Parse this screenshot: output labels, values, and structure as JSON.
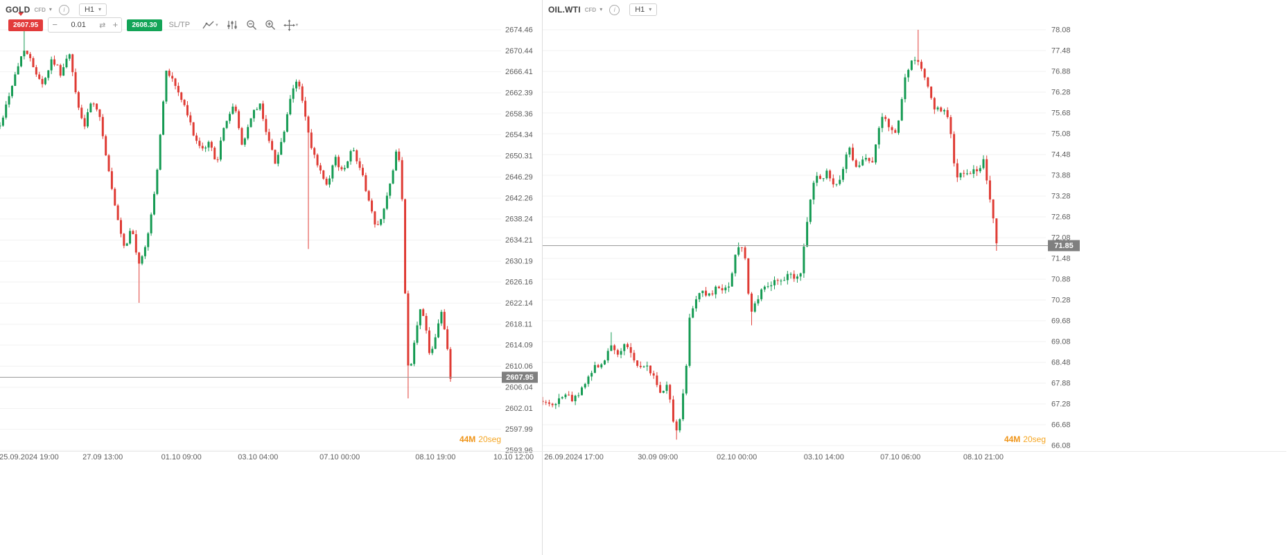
{
  "colors": {
    "up": "#149a52",
    "down": "#df3b34",
    "sell_badge": "#e23b3b",
    "buy_badge": "#13a457",
    "price_badge_bg": "#7f7f7f",
    "price_line": "#9a9a9a",
    "grid": "#f2f2f2",
    "axis_text": "#5c5c5c",
    "timer_orange": "#ef9417"
  },
  "panels": [
    {
      "symbol": "GOLD",
      "instrument_type": "CFD",
      "timeframe": "H1",
      "trade": {
        "sell": "2607.95",
        "volume": "0.01",
        "buy": "2608.30",
        "sltp": "SL/TP"
      },
      "timer_value": "44M",
      "timer_seconds": "20seg"
    },
    {
      "symbol": "OIL.WTI",
      "instrument_type": "CFD",
      "timeframe": "H1",
      "timer_value": "44M",
      "timer_seconds": "20seg"
    }
  ],
  "chart_data": [
    {
      "type": "candlestick",
      "symbol": "GOLD",
      "timeframe": "H1",
      "current_price": 2607.95,
      "decimals": 2,
      "ylim": [
        2593.96,
        2674.46
      ],
      "y_ticks": [
        2674.46,
        2670.44,
        2666.41,
        2662.39,
        2658.36,
        2654.34,
        2650.31,
        2646.29,
        2642.26,
        2638.24,
        2634.21,
        2630.19,
        2626.16,
        2622.14,
        2618.11,
        2614.09,
        2610.06,
        2606.04,
        2602.01,
        2597.99,
        2593.96
      ],
      "x_ticks": [
        {
          "label": "25.09.2024 19:00",
          "pos": 0.058
        },
        {
          "label": "27.09 13:00",
          "pos": 0.205
        },
        {
          "label": "01.10 09:00",
          "pos": 0.362
        },
        {
          "label": "03.10 04:00",
          "pos": 0.515
        },
        {
          "label": "07.10 00:00",
          "pos": 0.678
        },
        {
          "label": "08.10 19:00",
          "pos": 0.869
        },
        {
          "label": "10.10 12:00",
          "pos": 1.025
        }
      ],
      "bars": 150,
      "volatility": 1.1,
      "seed": 42,
      "price_path": [
        [
          0.0,
          2656
        ],
        [
          0.021,
          2663
        ],
        [
          0.048,
          2671
        ],
        [
          0.069,
          2667
        ],
        [
          0.086,
          2664
        ],
        [
          0.104,
          2669
        ],
        [
          0.122,
          2666
        ],
        [
          0.138,
          2670
        ],
        [
          0.155,
          2660
        ],
        [
          0.169,
          2656
        ],
        [
          0.183,
          2661
        ],
        [
          0.201,
          2657
        ],
        [
          0.214,
          2649
        ],
        [
          0.232,
          2639
        ],
        [
          0.249,
          2632
        ],
        [
          0.263,
          2637
        ],
        [
          0.277,
          2629
        ],
        [
          0.293,
          2634
        ],
        [
          0.311,
          2645
        ],
        [
          0.332,
          2667
        ],
        [
          0.349,
          2664
        ],
        [
          0.367,
          2660
        ],
        [
          0.385,
          2655
        ],
        [
          0.401,
          2651
        ],
        [
          0.418,
          2653
        ],
        [
          0.432,
          2649
        ],
        [
          0.45,
          2657
        ],
        [
          0.468,
          2660
        ],
        [
          0.484,
          2652
        ],
        [
          0.501,
          2658
        ],
        [
          0.519,
          2660
        ],
        [
          0.537,
          2653
        ],
        [
          0.55,
          2649
        ],
        [
          0.567,
          2655
        ],
        [
          0.584,
          2663
        ],
        [
          0.595,
          2665
        ],
        [
          0.609,
          2658
        ],
        [
          0.62,
          2652
        ],
        [
          0.636,
          2648
        ],
        [
          0.653,
          2644
        ],
        [
          0.668,
          2650
        ],
        [
          0.685,
          2647
        ],
        [
          0.701,
          2652
        ],
        [
          0.716,
          2649
        ],
        [
          0.733,
          2643
        ],
        [
          0.751,
          2636
        ],
        [
          0.768,
          2641
        ],
        [
          0.784,
          2647
        ],
        [
          0.794,
          2653
        ],
        [
          0.802,
          2643
        ],
        [
          0.809,
          2622
        ],
        [
          0.816,
          2607
        ],
        [
          0.826,
          2614
        ],
        [
          0.837,
          2621
        ],
        [
          0.848,
          2619
        ],
        [
          0.858,
          2612
        ],
        [
          0.869,
          2616
        ],
        [
          0.88,
          2621
        ],
        [
          0.889,
          2616
        ],
        [
          0.899,
          2608
        ]
      ],
      "key_wicks": [
        {
          "pos": 0.048,
          "price": 2674.4
        },
        {
          "pos": 0.277,
          "price": 2622.2
        },
        {
          "pos": 0.615,
          "price": 2632.5
        },
        {
          "pos": 0.813,
          "price": 2603.9
        }
      ]
    },
    {
      "type": "candlestick",
      "symbol": "OIL.WTI",
      "timeframe": "H1",
      "current_price": 71.85,
      "decimals": 2,
      "ylim": [
        66.08,
        78.08
      ],
      "y_ticks": [
        78.08,
        77.48,
        76.88,
        76.28,
        75.68,
        75.08,
        74.48,
        73.88,
        73.28,
        72.68,
        72.08,
        71.48,
        70.88,
        70.28,
        69.68,
        69.08,
        68.48,
        67.88,
        67.28,
        66.68,
        66.08
      ],
      "x_ticks": [
        {
          "label": "26.09.2024 17:00",
          "pos": 0.062
        },
        {
          "label": "30.09 09:00",
          "pos": 0.229
        },
        {
          "label": "02.10 00:00",
          "pos": 0.386
        },
        {
          "label": "03.10 14:00",
          "pos": 0.559
        },
        {
          "label": "07.10 06:00",
          "pos": 0.711
        },
        {
          "label": "08.10 21:00",
          "pos": 0.876
        }
      ],
      "bars": 140,
      "volatility": 0.2,
      "seed": 1337,
      "price_path": [
        [
          0.0,
          67.4
        ],
        [
          0.021,
          67.2
        ],
        [
          0.041,
          67.6
        ],
        [
          0.062,
          67.4
        ],
        [
          0.083,
          67.9
        ],
        [
          0.103,
          68.3
        ],
        [
          0.124,
          68.6
        ],
        [
          0.138,
          69.0
        ],
        [
          0.152,
          68.7
        ],
        [
          0.165,
          69.0
        ],
        [
          0.182,
          68.5
        ],
        [
          0.196,
          68.3
        ],
        [
          0.209,
          68.4
        ],
        [
          0.223,
          68.0
        ],
        [
          0.237,
          67.5
        ],
        [
          0.248,
          67.9
        ],
        [
          0.259,
          66.8
        ],
        [
          0.267,
          66.5
        ],
        [
          0.275,
          67.1
        ],
        [
          0.285,
          68.2
        ],
        [
          0.293,
          69.9
        ],
        [
          0.303,
          70.3
        ],
        [
          0.317,
          70.6
        ],
        [
          0.331,
          70.4
        ],
        [
          0.344,
          70.6
        ],
        [
          0.358,
          70.5
        ],
        [
          0.372,
          70.8
        ],
        [
          0.383,
          71.6
        ],
        [
          0.392,
          71.9
        ],
        [
          0.402,
          71.6
        ],
        [
          0.409,
          70.4
        ],
        [
          0.417,
          69.9
        ],
        [
          0.427,
          70.3
        ],
        [
          0.438,
          70.6
        ],
        [
          0.452,
          70.7
        ],
        [
          0.466,
          70.9
        ],
        [
          0.479,
          70.8
        ],
        [
          0.49,
          71.1
        ],
        [
          0.503,
          70.9
        ],
        [
          0.515,
          71.2
        ],
        [
          0.526,
          72.6
        ],
        [
          0.534,
          73.4
        ],
        [
          0.543,
          73.9
        ],
        [
          0.554,
          73.8
        ],
        [
          0.565,
          74.0
        ],
        [
          0.576,
          73.7
        ],
        [
          0.587,
          73.6
        ],
        [
          0.598,
          74.0
        ],
        [
          0.607,
          74.9
        ],
        [
          0.614,
          74.4
        ],
        [
          0.623,
          74.1
        ],
        [
          0.634,
          74.2
        ],
        [
          0.645,
          74.4
        ],
        [
          0.656,
          74.3
        ],
        [
          0.667,
          75.2
        ],
        [
          0.678,
          75.6
        ],
        [
          0.689,
          75.3
        ],
        [
          0.7,
          75.1
        ],
        [
          0.711,
          75.7
        ],
        [
          0.72,
          76.6
        ],
        [
          0.73,
          77.1
        ],
        [
          0.74,
          77.3
        ],
        [
          0.748,
          77.1
        ],
        [
          0.758,
          76.8
        ],
        [
          0.767,
          76.3
        ],
        [
          0.777,
          75.9
        ],
        [
          0.788,
          75.7
        ],
        [
          0.799,
          75.8
        ],
        [
          0.808,
          75.5
        ],
        [
          0.815,
          74.5
        ],
        [
          0.824,
          73.9
        ],
        [
          0.833,
          74.0
        ],
        [
          0.844,
          73.9
        ],
        [
          0.855,
          74.0
        ],
        [
          0.866,
          74.1
        ],
        [
          0.876,
          74.3
        ],
        [
          0.886,
          73.5
        ],
        [
          0.894,
          72.7
        ],
        [
          0.902,
          71.9
        ]
      ],
      "key_wicks": [
        {
          "pos": 0.138,
          "price": 69.35
        },
        {
          "pos": 0.267,
          "price": 66.25
        },
        {
          "pos": 0.417,
          "price": 69.55
        },
        {
          "pos": 0.744,
          "price": 78.08
        },
        {
          "pos": 0.902,
          "price": 71.7
        }
      ]
    }
  ]
}
